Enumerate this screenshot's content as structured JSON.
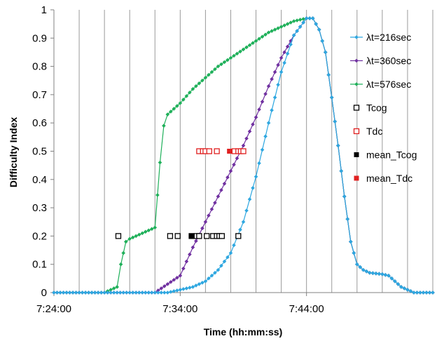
{
  "chart_data": {
    "type": "line",
    "xlabel": "Time (hh:mm:ss)",
    "ylabel": "Difficulty Index",
    "x_unit": "clock time (minutes after 7:24:00)",
    "xlim": [
      0,
      30
    ],
    "ylim": [
      0,
      1
    ],
    "x_ticks": [
      "7:24:00",
      "7:34:00",
      "7:44:00"
    ],
    "y_ticks": [
      "0",
      "0.1",
      "0.2",
      "0.3",
      "0.4",
      "0.5",
      "0.6",
      "0.7",
      "0.8",
      "0.9",
      "1"
    ],
    "grid": "vertical",
    "legend_position": "right",
    "series": [
      {
        "name": "λt=216sec",
        "color": "#2ea7e0",
        "marker": "diamond",
        "line": true,
        "points": [
          [
            0,
            0
          ],
          [
            1,
            0
          ],
          [
            2,
            0
          ],
          [
            3,
            0
          ],
          [
            4,
            0
          ],
          [
            5,
            0
          ],
          [
            6,
            0
          ],
          [
            7,
            0
          ],
          [
            8,
            0
          ],
          [
            9,
            0
          ],
          [
            10,
            0.01
          ],
          [
            11,
            0.02
          ],
          [
            12,
            0.04
          ],
          [
            13,
            0.08
          ],
          [
            14,
            0.14
          ],
          [
            15,
            0.25
          ],
          [
            16,
            0.41
          ],
          [
            17,
            0.6
          ],
          [
            18,
            0.78
          ],
          [
            19,
            0.91
          ],
          [
            20,
            0.97
          ],
          [
            20.5,
            0.97
          ],
          [
            21,
            0.93
          ],
          [
            21.5,
            0.85
          ],
          [
            22,
            0.69
          ],
          [
            22.5,
            0.52
          ],
          [
            23,
            0.34
          ],
          [
            23.5,
            0.18
          ],
          [
            24,
            0.1
          ],
          [
            24.5,
            0.08
          ],
          [
            25,
            0.07
          ],
          [
            26,
            0.065
          ],
          [
            26.5,
            0.06
          ],
          [
            27,
            0.04
          ],
          [
            27.5,
            0.02
          ],
          [
            28,
            0.01
          ],
          [
            28.5,
            0
          ],
          [
            29,
            0
          ],
          [
            30,
            0
          ]
        ]
      },
      {
        "name": "λt=360sec",
        "color": "#7030a0",
        "marker": "diamond",
        "line": true,
        "points": [
          [
            0,
            0
          ],
          [
            1,
            0
          ],
          [
            2,
            0
          ],
          [
            3,
            0
          ],
          [
            4,
            0
          ],
          [
            5,
            0
          ],
          [
            6,
            0
          ],
          [
            7,
            0
          ],
          [
            8,
            0
          ],
          [
            9,
            0.03
          ],
          [
            10,
            0.06
          ],
          [
            11,
            0.16
          ],
          [
            12,
            0.25
          ],
          [
            13,
            0.34
          ],
          [
            14,
            0.43
          ],
          [
            15,
            0.52
          ],
          [
            16,
            0.62
          ],
          [
            17,
            0.73
          ],
          [
            18,
            0.83
          ],
          [
            19,
            0.91
          ],
          [
            20,
            0.97
          ],
          [
            20.5,
            0.97
          ],
          [
            21,
            0.93
          ],
          [
            21.5,
            0.85
          ],
          [
            22,
            0.69
          ],
          [
            22.5,
            0.52
          ],
          [
            23,
            0.34
          ],
          [
            23.5,
            0.18
          ],
          [
            24,
            0.1
          ],
          [
            24.5,
            0.08
          ],
          [
            25,
            0.07
          ],
          [
            26,
            0.065
          ],
          [
            26.5,
            0.06
          ],
          [
            27,
            0.04
          ],
          [
            27.5,
            0.02
          ],
          [
            28,
            0.01
          ],
          [
            28.5,
            0
          ],
          [
            29,
            0
          ],
          [
            30,
            0
          ]
        ]
      },
      {
        "name": "λt=576sec",
        "color": "#1fb05a",
        "marker": "diamond",
        "line": true,
        "points": [
          [
            0,
            0
          ],
          [
            1,
            0
          ],
          [
            2,
            0
          ],
          [
            3,
            0
          ],
          [
            4,
            0
          ],
          [
            5,
            0.02
          ],
          [
            5.3,
            0.1
          ],
          [
            5.7,
            0.18
          ],
          [
            6,
            0.19
          ],
          [
            7,
            0.21
          ],
          [
            8,
            0.23
          ],
          [
            8.4,
            0.46
          ],
          [
            8.7,
            0.59
          ],
          [
            9,
            0.63
          ],
          [
            10,
            0.67
          ],
          [
            11,
            0.72
          ],
          [
            12,
            0.76
          ],
          [
            13,
            0.8
          ],
          [
            14,
            0.83
          ],
          [
            15,
            0.86
          ],
          [
            16,
            0.89
          ],
          [
            17,
            0.92
          ],
          [
            18,
            0.94
          ],
          [
            19,
            0.96
          ],
          [
            20,
            0.97
          ],
          [
            20.5,
            0.97
          ],
          [
            21,
            0.93
          ],
          [
            21.5,
            0.85
          ],
          [
            22,
            0.69
          ],
          [
            22.5,
            0.52
          ],
          [
            23,
            0.34
          ],
          [
            23.5,
            0.18
          ],
          [
            24,
            0.1
          ],
          [
            24.5,
            0.08
          ],
          [
            25,
            0.07
          ],
          [
            26,
            0.065
          ],
          [
            26.5,
            0.06
          ],
          [
            27,
            0.04
          ],
          [
            27.5,
            0.02
          ],
          [
            28,
            0.01
          ],
          [
            28.5,
            0
          ],
          [
            29,
            0
          ],
          [
            30,
            0
          ]
        ]
      },
      {
        "name": "Tcog",
        "color": "#000000",
        "marker": "square-open",
        "line": false,
        "points": [
          [
            5.1,
            0.2
          ],
          [
            9.2,
            0.2
          ],
          [
            9.8,
            0.2
          ],
          [
            10.9,
            0.2
          ],
          [
            11.3,
            0.2
          ],
          [
            11.5,
            0.2
          ],
          [
            12.1,
            0.2
          ],
          [
            12.6,
            0.2
          ],
          [
            12.9,
            0.2
          ],
          [
            13.1,
            0.2
          ],
          [
            13.3,
            0.2
          ],
          [
            14.6,
            0.2
          ]
        ]
      },
      {
        "name": "Tdc",
        "color": "#e02020",
        "marker": "square-open",
        "line": false,
        "points": [
          [
            11.5,
            0.5
          ],
          [
            11.8,
            0.5
          ],
          [
            12.0,
            0.5
          ],
          [
            12.3,
            0.5
          ],
          [
            12.9,
            0.5
          ],
          [
            14.3,
            0.5
          ],
          [
            14.6,
            0.5
          ],
          [
            14.8,
            0.5
          ],
          [
            15.0,
            0.5
          ]
        ]
      },
      {
        "name": "mean_Tcog",
        "color": "#000000",
        "marker": "square-filled",
        "line": false,
        "points": [
          [
            10.9,
            0.2
          ]
        ]
      },
      {
        "name": "mean_Tdc",
        "color": "#e02020",
        "marker": "square-filled",
        "line": false,
        "points": [
          [
            13.9,
            0.5
          ]
        ]
      }
    ]
  }
}
